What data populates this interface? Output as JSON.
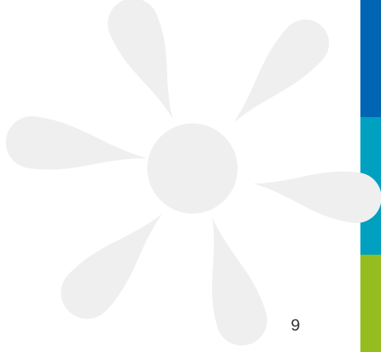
{
  "page_number": "9"
}
